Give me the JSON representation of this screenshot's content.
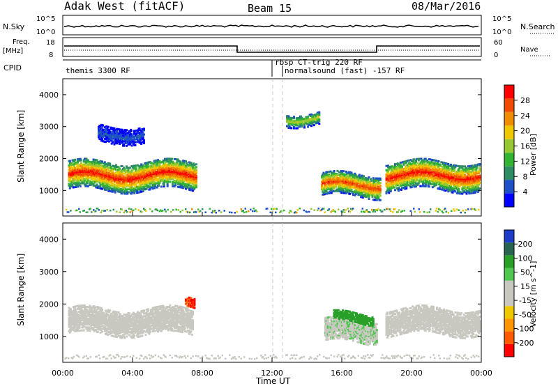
{
  "header": {
    "station": "Adak West (fitACF)",
    "beam": "Beam 15",
    "date": "08/Mar/2016"
  },
  "strip_labels": {
    "nsky": "N.Sky",
    "nsearch": "N.Search",
    "freq_line1": "Freq.",
    "freq_line2": "[MHz]",
    "nave": "Nave",
    "cpid": "CPID",
    "nsky_ticks": [
      "10^5",
      "10^0"
    ],
    "nsearch_ticks": [
      "10^5",
      "10^0"
    ],
    "freq_ticks": [
      "18",
      "8"
    ],
    "nave_ticks": [
      "60",
      "0"
    ]
  },
  "cpid_segments": [
    {
      "label": "themis 3300 RF",
      "start_hour": 0.0
    },
    {
      "label": "rbsp CT-trig 220 RF",
      "start_hour": 12.0
    },
    {
      "label": "normalsound (fast) -157 RF",
      "start_hour": 12.7
    }
  ],
  "colors": {
    "power_scale": [
      "#0000ff",
      "#1e50c8",
      "#2d8c64",
      "#32b432",
      "#96c832",
      "#f0c800",
      "#f08c00",
      "#f04b00",
      "#ff0000"
    ],
    "velocity_scale": [
      "#ff0000",
      "#ff5a00",
      "#ff9600",
      "#f0c800",
      "#c8c8c0",
      "#c8c8c0",
      "#50c850",
      "#28a028",
      "#286450",
      "#1e3cc8"
    ],
    "gridline": "#c8c8c8",
    "cpid_divider": "#000000"
  },
  "chart_data": [
    {
      "type": "heatmap",
      "name": "power",
      "xlabel": "",
      "ylabel": "Slant Range [km]",
      "xlim": [
        0,
        24
      ],
      "ylim": [
        200,
        4500
      ],
      "yticks": [
        1000,
        2000,
        3000,
        4000
      ],
      "colorbar_label": "Power [dB]",
      "colorbar_ticks": [
        "4",
        "8",
        "12",
        "16",
        "20",
        "24",
        "28"
      ],
      "colorbar_range": [
        0,
        32
      ],
      "regions": [
        {
          "hour_start": 0.3,
          "hour_end": 7.6,
          "range_center": 1500,
          "range_width": 450,
          "peak_db": 30
        },
        {
          "hour_start": 2.0,
          "hour_end": 4.6,
          "range_center": 2800,
          "range_width": 250,
          "peak_db": 6
        },
        {
          "hour_start": 14.8,
          "hour_end": 18.2,
          "range_center": 1200,
          "range_width": 350,
          "peak_db": 28
        },
        {
          "hour_start": 18.5,
          "hour_end": 23.9,
          "range_center": 1500,
          "range_width": 450,
          "peak_db": 30
        },
        {
          "hour_start": 12.8,
          "hour_end": 14.7,
          "range_center": 3300,
          "range_width": 200,
          "peak_db": 18
        }
      ]
    },
    {
      "type": "heatmap",
      "name": "velocity",
      "xlabel": "Time UT",
      "ylabel": "Slant Range [km]",
      "xlim": [
        0,
        24
      ],
      "ylim": [
        200,
        4500
      ],
      "yticks": [
        1000,
        2000,
        3000,
        4000
      ],
      "xticks": [
        "00:00",
        "04:00",
        "08:00",
        "12:00",
        "16:00",
        "20:00",
        "00:00"
      ],
      "colorbar_label": "Velocity [m s^-1]",
      "colorbar_ticks": [
        "-200",
        "-100",
        "-50",
        "-15",
        "15",
        "50",
        "100",
        "200"
      ],
      "colorbar_range": [
        -250,
        250
      ],
      "regions": [
        {
          "hour_start": 0.3,
          "hour_end": 7.4,
          "range_center": 1500,
          "range_width": 400,
          "velocity": 0
        },
        {
          "hour_start": 7.0,
          "hour_end": 7.5,
          "range_center": 2100,
          "range_width": 150,
          "velocity": -200
        },
        {
          "hour_start": 15.0,
          "hour_end": 18.0,
          "range_center": 1200,
          "range_width": 350,
          "velocity": 40
        },
        {
          "hour_start": 15.5,
          "hour_end": 17.8,
          "range_center": 1600,
          "range_width": 150,
          "velocity": 120
        },
        {
          "hour_start": 18.5,
          "hour_end": 23.9,
          "range_center": 1500,
          "range_width": 400,
          "velocity": 0
        }
      ]
    }
  ]
}
